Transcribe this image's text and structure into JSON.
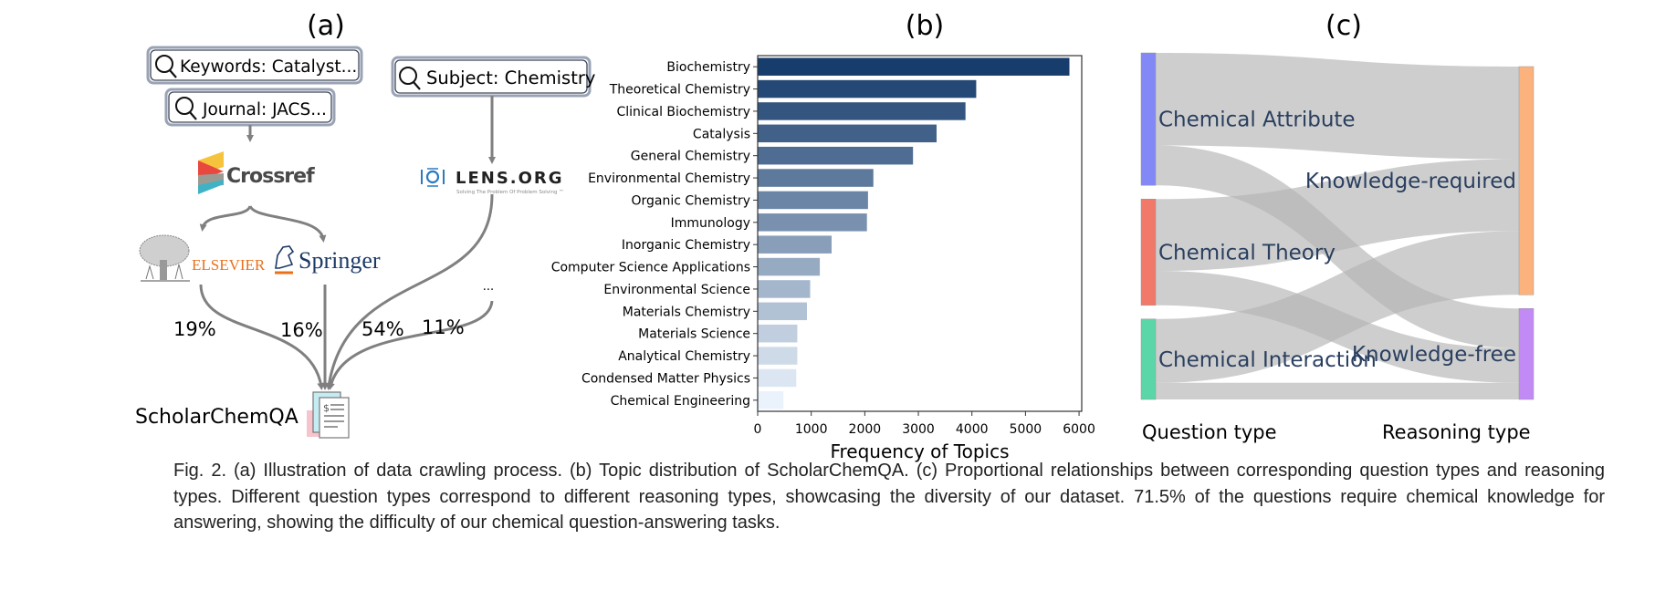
{
  "panel_labels": {
    "a": "(a)",
    "b": "(b)",
    "c": "(c)"
  },
  "panel_a": {
    "search_boxes": [
      {
        "label": "Keywords: Catalyst...",
        "icon": "search-icon"
      },
      {
        "label": "Journal: JACS...",
        "icon": "search-icon"
      },
      {
        "label": "Subject: Chemistry",
        "icon": "search-icon"
      }
    ],
    "logos": {
      "crossref": "Crossref",
      "lens": "LENS.ORG",
      "lens_tagline": "Solving The Problem Of Problem Solving ™",
      "elsevier": "ELSEVIER",
      "springer": "Springer"
    },
    "other_source": "...",
    "shares": [
      "19%",
      "16%",
      "54%",
      "11%"
    ],
    "dataset_name": "ScholarChemQA",
    "dataset_icon": "document-icon",
    "arrow_color": "#808080"
  },
  "chart_data": [
    {
      "type": "bar",
      "orientation": "horizontal",
      "categories": [
        "Biochemistry",
        "Theoretical Chemistry",
        "Clinical Biochemistry",
        "Catalysis",
        "General Chemistry",
        "Environmental Chemistry",
        "Organic Chemistry",
        "Immunology",
        "Inorganic Chemistry",
        "Computer Science Applications",
        "Environmental Science",
        "Materials Chemistry",
        "Materials Science",
        "Analytical Chemistry",
        "Condensed Matter Physics",
        "Chemical Engineering"
      ],
      "values": [
        5820,
        4080,
        3880,
        3340,
        2900,
        2160,
        2060,
        2040,
        1380,
        1160,
        980,
        920,
        740,
        740,
        720,
        480
      ],
      "xlabel": "Frequency of Topics",
      "ylabel": "",
      "xticks": [
        "0",
        "1000",
        "2000",
        "3000",
        "4000",
        "5000",
        "6000"
      ],
      "xlim": [
        0,
        6050
      ],
      "grid": false,
      "colormap": "Blues (dark to light)",
      "color_range": [
        "#173d6d",
        "#eaf2fb"
      ]
    },
    {
      "type": "sankey",
      "left_axis_label": "Question type",
      "right_axis_label": "Reasoning type",
      "nodes": [
        {
          "name": "Chemical Attribute",
          "side": "left",
          "color": "#8288f5"
        },
        {
          "name": "Chemical Theory",
          "side": "left",
          "color": "#f0796a"
        },
        {
          "name": "Chemical Interaction",
          "side": "left",
          "color": "#5ad6a8"
        },
        {
          "name": "Knowledge-required",
          "side": "right",
          "color": "#fbb27c"
        },
        {
          "name": "Knowledge-free",
          "side": "right",
          "color": "#c28af5"
        }
      ],
      "links": [
        {
          "source": 0,
          "target": 3,
          "value": 29
        },
        {
          "source": 0,
          "target": 4,
          "value": 12.5
        },
        {
          "source": 1,
          "target": 3,
          "value": 22.5
        },
        {
          "source": 1,
          "target": 4,
          "value": 10.8
        },
        {
          "source": 2,
          "target": 3,
          "value": 20
        },
        {
          "source": 2,
          "target": 4,
          "value": 5.2
        }
      ],
      "unit": "% of questions",
      "link_color": "#b4b4b4",
      "label_color": "#2a3f5f"
    }
  ],
  "caption": "Fig. 2. (a) Illustration of data crawling process. (b) Topic distribution of ScholarChemQA. (c) Proportional relationships between corresponding question types and reasoning types. Different question types correspond to different reasoning types, showcasing the diversity of our dataset. 71.5% of the questions require chemical knowledge for answering, showing the difficulty of our chemical question-answering tasks."
}
